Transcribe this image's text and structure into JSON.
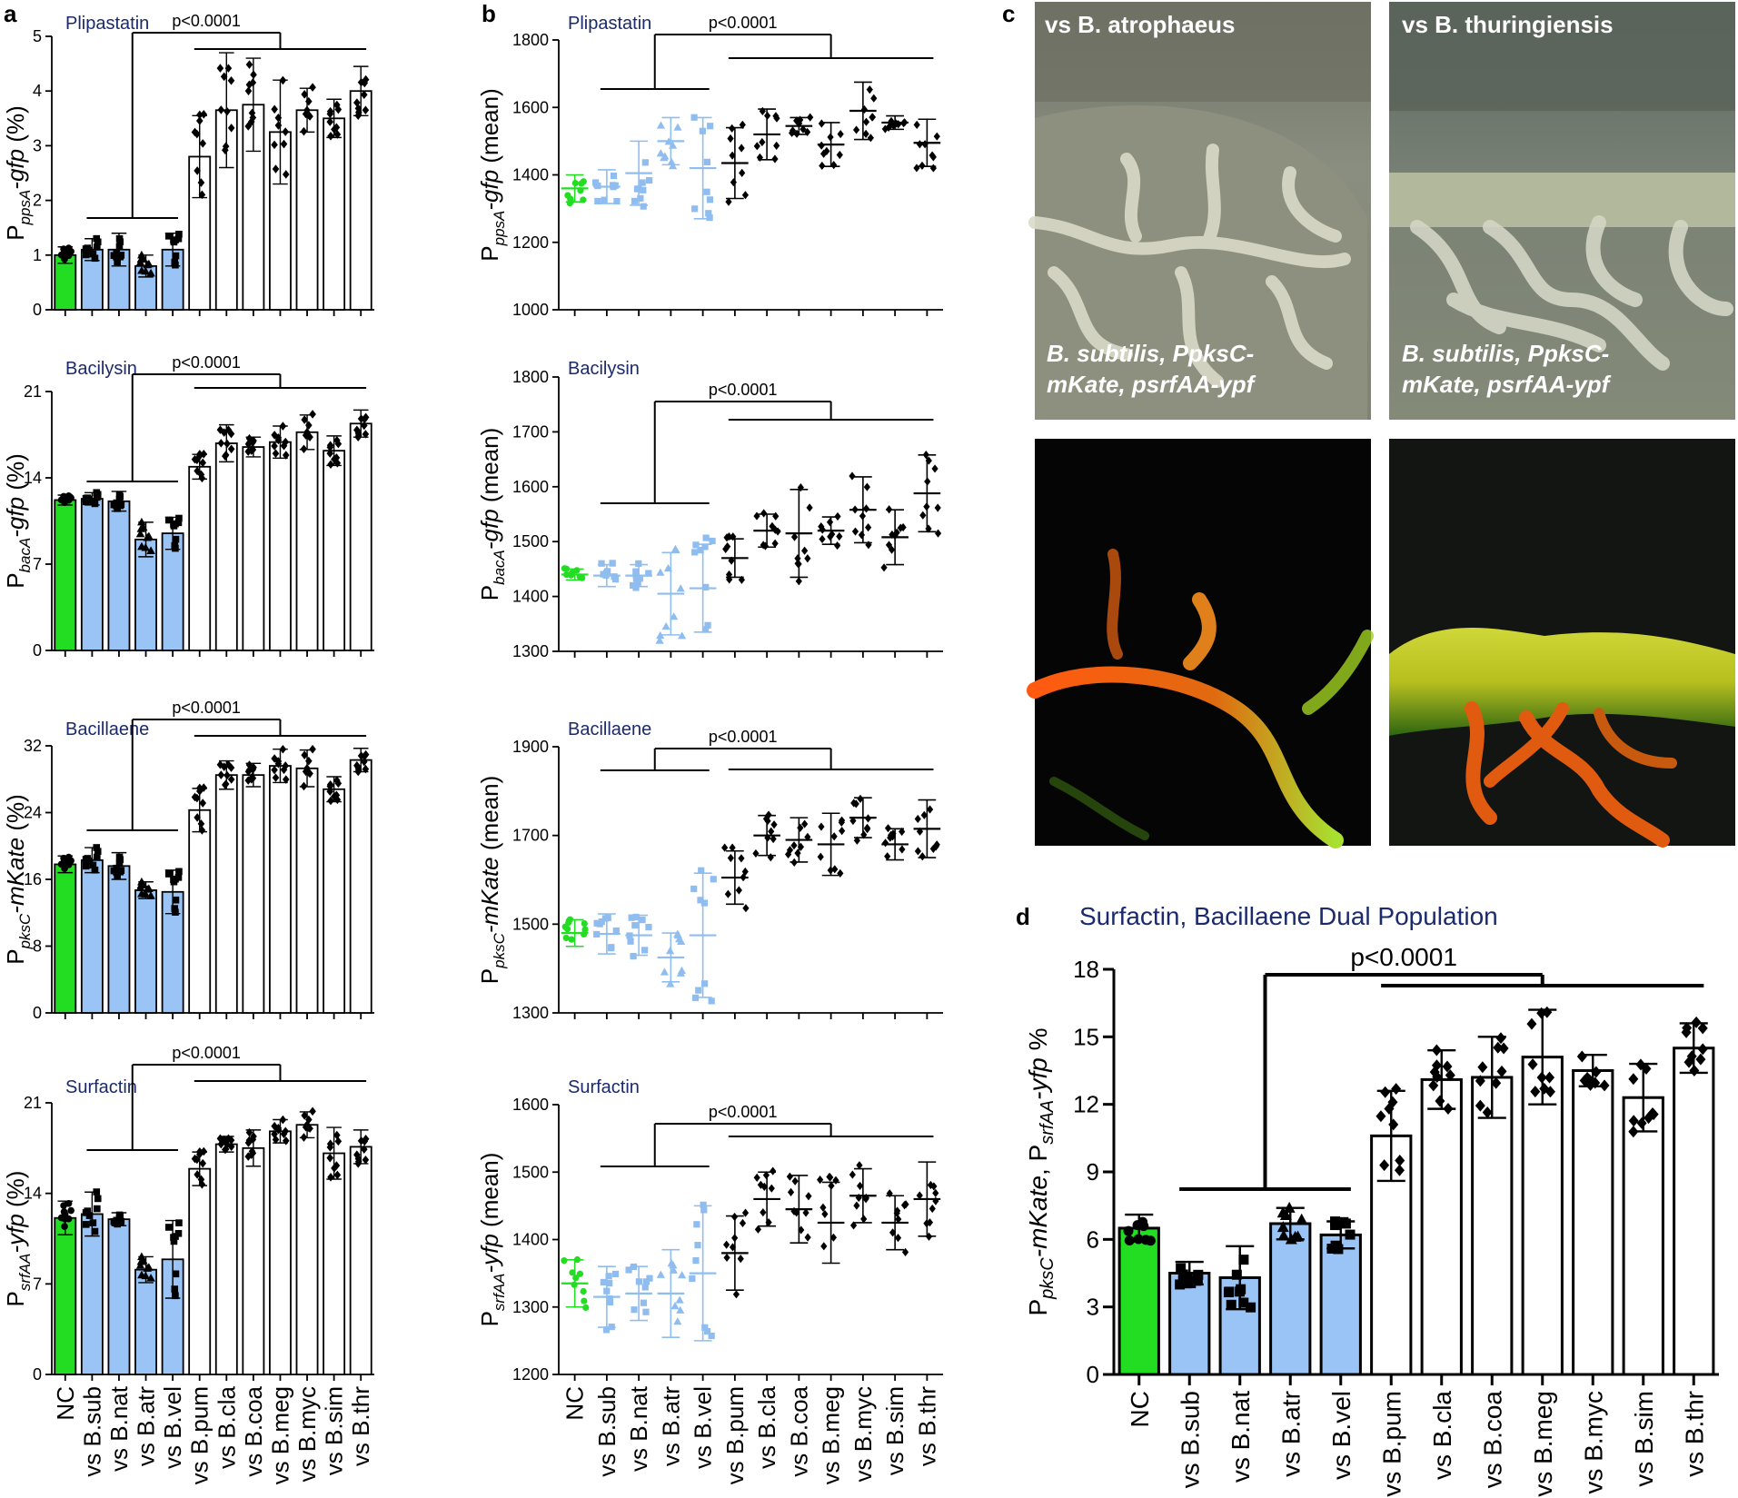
{
  "panel_letters": {
    "a": "a",
    "b": "b",
    "c": "c",
    "d": "d"
  },
  "categories": [
    "NC",
    "vs B.sub",
    "vs B.nat",
    "vs B.atr",
    "vs B.vel",
    "vs B.pum",
    "vs B.cla",
    "vs B.coa",
    "vs B.meg",
    "vs B.myc",
    "vs B.sim",
    "vs B.thr"
  ],
  "colors": {
    "nc": "#22dd22",
    "group1": "#99c4f5",
    "group2": "#ffffff",
    "light_points": "#8fbdf0",
    "nc_points": "#22dd22",
    "dark_points": "#000000"
  },
  "photos": {
    "top_left_title": "vs B. atrophaeus",
    "top_right_title": "vs B. thuringiensis",
    "strain_label_line1": "B.  subtilis,  PpksC-",
    "strain_label_line2": "mKate,  psrfAA-ypf"
  },
  "chart_data": [
    {
      "id": "a1",
      "panel": "a",
      "type": "bar",
      "title": "Plipastatin",
      "ylabel": "PppsA-gfp (%)",
      "ylim": [
        0,
        5
      ],
      "yticks": [
        0,
        1,
        2,
        3,
        4,
        5
      ],
      "pvalue": "p<0.0001",
      "categories_ref": "categories",
      "values": [
        1.0,
        1.1,
        1.1,
        0.8,
        1.1,
        2.8,
        3.65,
        3.75,
        3.25,
        3.65,
        3.5,
        4.0
      ],
      "errors": [
        0.15,
        0.2,
        0.3,
        0.2,
        0.3,
        0.75,
        1.05,
        0.85,
        0.95,
        0.4,
        0.35,
        0.45
      ]
    },
    {
      "id": "a2",
      "panel": "a",
      "type": "bar",
      "title": "Bacilysin",
      "ylabel": "PbacA-gfp (%)",
      "ylim": [
        0,
        21
      ],
      "yticks": [
        0,
        7,
        14,
        21
      ],
      "pvalue": "p<0.0001",
      "values": [
        12.2,
        12.3,
        12.1,
        9.0,
        9.5,
        14.9,
        16.8,
        16.5,
        16.9,
        17.7,
        16.2,
        18.4
      ],
      "errors": [
        0.4,
        0.5,
        0.8,
        1.4,
        1.3,
        1.0,
        1.5,
        0.8,
        1.3,
        1.4,
        1.2,
        1.1
      ]
    },
    {
      "id": "a3",
      "panel": "a",
      "type": "bar",
      "title": "Bacillaene",
      "ylabel": "PpksC-mKate (%)",
      "ylim": [
        0,
        32
      ],
      "yticks": [
        0,
        8,
        16,
        24,
        32
      ],
      "pvalue": "p<0.0001",
      "values": [
        17.8,
        18.3,
        17.6,
        14.7,
        14.5,
        24.3,
        28.5,
        28.5,
        29.6,
        29.3,
        26.8,
        30.3
      ],
      "errors": [
        1.0,
        1.5,
        1.6,
        1.0,
        2.6,
        2.6,
        1.7,
        1.4,
        2.0,
        2.2,
        1.5,
        1.4
      ]
    },
    {
      "id": "a4",
      "panel": "a",
      "type": "bar",
      "title": "Surfactin",
      "ylabel": "PsrfAA-yfp (%)",
      "ylim": [
        0,
        21
      ],
      "yticks": [
        0,
        7,
        14,
        21
      ],
      "pvalue": "p<0.0001",
      "values": [
        12.1,
        12.4,
        12.0,
        8.1,
        8.9,
        15.9,
        17.8,
        17.5,
        18.8,
        19.3,
        17.1,
        17.6
      ],
      "errors": [
        1.3,
        1.7,
        0.5,
        1.0,
        3.0,
        1.3,
        0.6,
        1.4,
        0.9,
        1.0,
        2.0,
        1.3
      ]
    },
    {
      "id": "b1",
      "panel": "b",
      "type": "scatter",
      "title": "Plipastatin",
      "ylabel": "PppsA-gfp (mean)",
      "ylim": [
        1000,
        1800
      ],
      "yticks": [
        1000,
        1200,
        1400,
        1600,
        1800
      ],
      "pvalue": "p<0.0001",
      "means": [
        1360,
        1365,
        1405,
        1500,
        1420,
        1435,
        1520,
        1545,
        1490,
        1590,
        1555,
        1495
      ],
      "errors": [
        40,
        50,
        95,
        70,
        150,
        105,
        75,
        25,
        65,
        85,
        20,
        70
      ]
    },
    {
      "id": "b2",
      "panel": "b",
      "type": "scatter",
      "title": "Bacilysin",
      "ylabel": "PbacA-gfp (mean)",
      "ylim": [
        1300,
        1800
      ],
      "yticks": [
        1300,
        1400,
        1500,
        1600,
        1700,
        1800
      ],
      "pvalue": "p<0.0001",
      "means": [
        1440,
        1438,
        1438,
        1405,
        1415,
        1470,
        1520,
        1515,
        1520,
        1558,
        1508,
        1588
      ],
      "errors": [
        10,
        20,
        20,
        75,
        80,
        35,
        30,
        80,
        25,
        60,
        50,
        70
      ]
    },
    {
      "id": "b3",
      "panel": "b",
      "type": "scatter",
      "title": "Bacillaene",
      "ylabel": "PpksC-mKate (mean)",
      "ylim": [
        1300,
        1900
      ],
      "yticks": [
        1300,
        1500,
        1700,
        1900
      ],
      "pvalue": "p<0.0001",
      "means": [
        1480,
        1478,
        1475,
        1425,
        1475,
        1605,
        1700,
        1690,
        1680,
        1740,
        1680,
        1715
      ],
      "errors": [
        30,
        45,
        45,
        55,
        140,
        60,
        45,
        50,
        70,
        45,
        35,
        65
      ]
    },
    {
      "id": "b4",
      "panel": "b",
      "type": "scatter",
      "title": "Surfactin",
      "ylabel": "PsrfAA-yfp (mean)",
      "ylim": [
        1200,
        1600
      ],
      "yticks": [
        1200,
        1300,
        1400,
        1500,
        1600
      ],
      "pvalue": "p<0.0001",
      "means": [
        1335,
        1315,
        1320,
        1320,
        1350,
        1380,
        1460,
        1445,
        1425,
        1465,
        1425,
        1460
      ],
      "errors": [
        35,
        45,
        40,
        65,
        100,
        55,
        40,
        50,
        60,
        40,
        40,
        55
      ]
    },
    {
      "id": "d",
      "panel": "d",
      "type": "bar",
      "title": "Surfactin, Bacillaene Dual Population",
      "ylabel": "PpksC-mKate, PsrfAA-yfp %",
      "ylim": [
        0,
        18
      ],
      "yticks": [
        0,
        3,
        6,
        9,
        12,
        15,
        18
      ],
      "pvalue": "p<0.0001",
      "values": [
        6.5,
        4.5,
        4.3,
        6.7,
        6.2,
        10.6,
        13.1,
        13.2,
        14.1,
        13.5,
        12.3,
        14.5
      ],
      "errors": [
        0.6,
        0.5,
        1.4,
        0.7,
        0.6,
        2.0,
        1.3,
        1.8,
        2.1,
        0.7,
        1.5,
        1.1
      ]
    }
  ]
}
